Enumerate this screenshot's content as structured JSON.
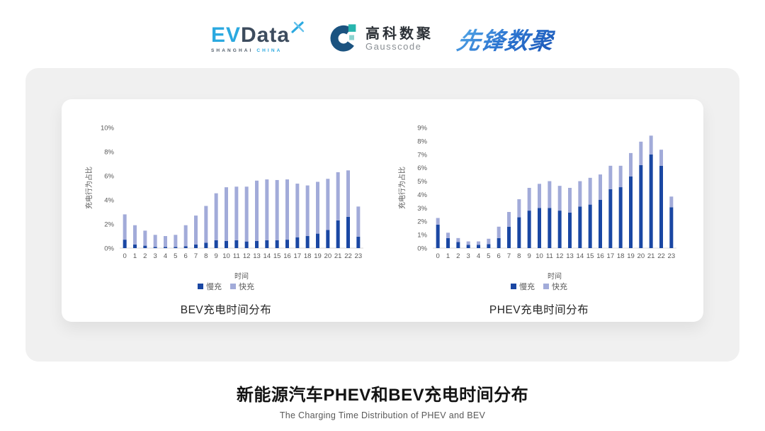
{
  "header": {
    "evdata": {
      "ev": "EV",
      "data": "Data",
      "sub_left": "SHANGHAI",
      "sub_right": "CHINA"
    },
    "gausscode": {
      "cn": "高科数聚",
      "en": "Gausscode"
    },
    "pioneer": {
      "text": "先锋数聚"
    }
  },
  "colors": {
    "slow": "#1A47A3",
    "fast": "#A2ABD9",
    "panel_bg": "#F0F0F0",
    "axis_text": "#595959",
    "baseline": "#D9D9D9"
  },
  "chart_data": [
    {
      "type": "bar",
      "stacked": true,
      "title": "BEV充电时间分布",
      "categories": [
        0,
        1,
        2,
        3,
        4,
        5,
        6,
        7,
        8,
        9,
        10,
        11,
        12,
        13,
        14,
        15,
        16,
        17,
        18,
        19,
        20,
        21,
        22,
        23
      ],
      "series": [
        {
          "name": "慢充",
          "color": "#1A47A3",
          "values": [
            0.7,
            0.3,
            0.2,
            0.1,
            0.1,
            0.1,
            0.15,
            0.3,
            0.45,
            0.65,
            0.6,
            0.65,
            0.55,
            0.6,
            0.65,
            0.65,
            0.7,
            0.9,
            1.0,
            1.2,
            1.5,
            2.3,
            2.6,
            0.95
          ]
        },
        {
          "name": "快充",
          "color": "#A2ABD9",
          "values": [
            2.1,
            1.6,
            1.25,
            1.0,
            0.9,
            1.0,
            1.75,
            2.4,
            3.05,
            3.9,
            4.45,
            4.45,
            4.55,
            5.0,
            5.05,
            5.0,
            5.0,
            4.45,
            4.2,
            4.3,
            4.25,
            4.0,
            3.85,
            2.5
          ]
        }
      ],
      "xlabel": "时间",
      "ylabel": "充电行为占比",
      "ylim": [
        0,
        10
      ],
      "ytick_step": 2,
      "grid": false,
      "legend_position": "bottom"
    },
    {
      "type": "bar",
      "stacked": true,
      "title": "PHEV充电时间分布",
      "categories": [
        0,
        1,
        2,
        3,
        4,
        5,
        6,
        7,
        8,
        9,
        10,
        11,
        12,
        13,
        14,
        15,
        16,
        17,
        18,
        19,
        20,
        21,
        22,
        23
      ],
      "series": [
        {
          "name": "慢充",
          "color": "#1A47A3",
          "values": [
            1.75,
            0.75,
            0.45,
            0.25,
            0.25,
            0.3,
            0.75,
            1.6,
            2.3,
            2.8,
            3.0,
            3.0,
            2.8,
            2.65,
            3.1,
            3.25,
            3.6,
            4.4,
            4.55,
            5.35,
            6.2,
            7.0,
            6.15,
            3.05
          ]
        },
        {
          "name": "快充",
          "color": "#A2ABD9",
          "values": [
            0.5,
            0.4,
            0.3,
            0.25,
            0.25,
            0.4,
            0.85,
            1.1,
            1.35,
            1.7,
            1.8,
            2.0,
            1.85,
            1.85,
            1.9,
            2.0,
            1.9,
            1.75,
            1.6,
            1.75,
            1.75,
            1.4,
            1.2,
            0.8
          ]
        }
      ],
      "xlabel": "时间",
      "ylabel": "充电行为占比",
      "ylim": [
        0,
        9
      ],
      "ytick_step": 1,
      "grid": false,
      "legend_position": "bottom"
    }
  ],
  "footer": {
    "title": "新能源汽车PHEV和BEV充电时间分布",
    "subtitle": "The Charging Time Distribution of PHEV and BEV"
  }
}
